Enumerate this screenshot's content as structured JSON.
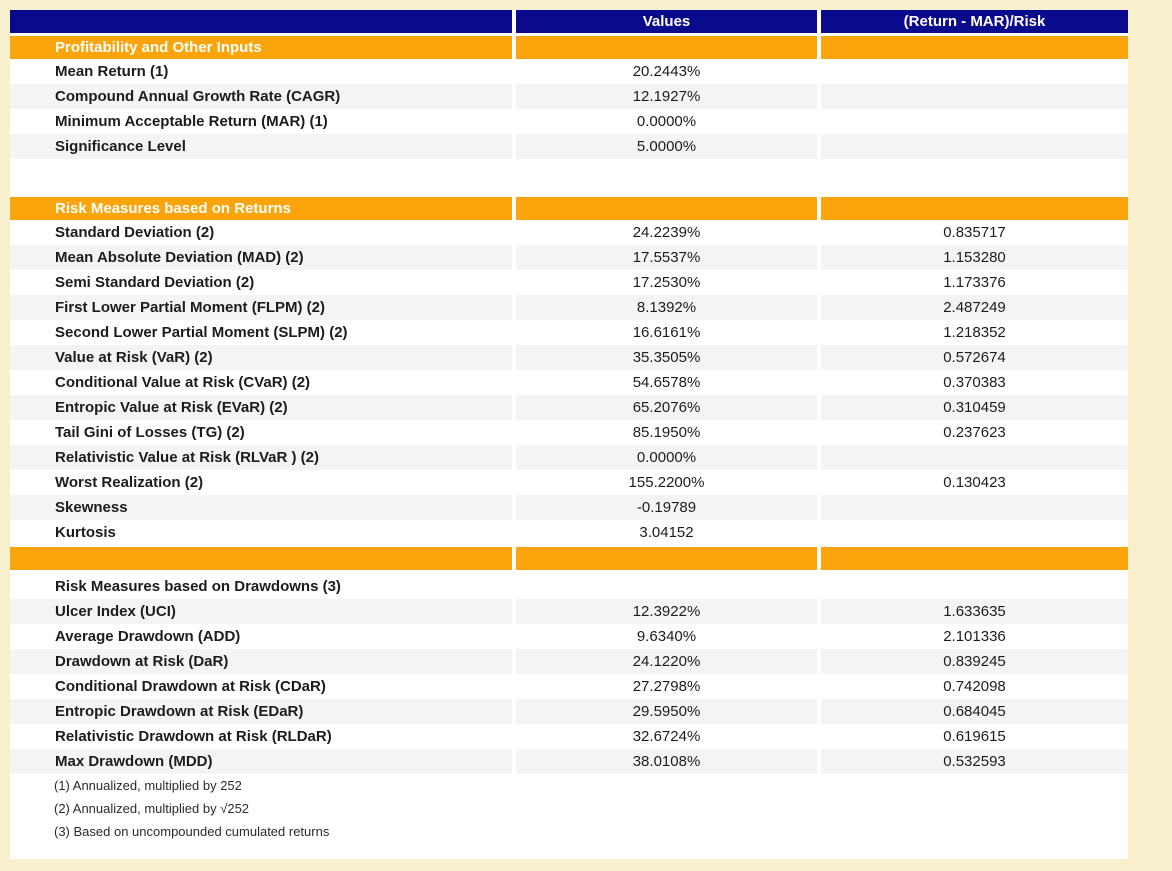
{
  "page": {
    "background_color": "#F8EFCD"
  },
  "table": {
    "colors": {
      "header_bg": "#0A0A8C",
      "section_bg": "#FCA40B",
      "stripe_bg": "#F4F4F4",
      "text": "#1C1C1C"
    },
    "header": {
      "metric_label": "",
      "values_label": "Values",
      "ratio_label": "(Return - MAR)/Risk"
    },
    "rows": [
      {
        "type": "section",
        "label": "Profitability and Other Inputs",
        "value": "",
        "ratio": ""
      },
      {
        "type": "data",
        "stripe": false,
        "label": "Mean Return (1)",
        "value": "20.2443%",
        "ratio": ""
      },
      {
        "type": "data",
        "stripe": true,
        "label": "Compound Annual Growth Rate (CAGR)",
        "value": "12.1927%",
        "ratio": ""
      },
      {
        "type": "data",
        "stripe": false,
        "label": "Minimum Acceptable Return (MAR) (1)",
        "value": "0.0000%",
        "ratio": ""
      },
      {
        "type": "data",
        "stripe": true,
        "label": "Significance Level",
        "value": "5.0000%",
        "ratio": ""
      },
      {
        "type": "spacer",
        "height": 38
      },
      {
        "type": "section",
        "label": "Risk Measures based on Returns",
        "value": "",
        "ratio": ""
      },
      {
        "type": "data",
        "stripe": false,
        "label": "Standard Deviation (2)",
        "value": "24.2239%",
        "ratio": "0.835717"
      },
      {
        "type": "data",
        "stripe": true,
        "label": "Mean Absolute Deviation (MAD) (2)",
        "value": "17.5537%",
        "ratio": "1.153280"
      },
      {
        "type": "data",
        "stripe": false,
        "label": "Semi Standard Deviation (2)",
        "value": "17.2530%",
        "ratio": "1.173376"
      },
      {
        "type": "data",
        "stripe": true,
        "label": "First Lower Partial Moment (FLPM) (2)",
        "value": "8.1392%",
        "ratio": "2.487249"
      },
      {
        "type": "data",
        "stripe": false,
        "label": "Second Lower Partial Moment (SLPM) (2)",
        "value": "16.6161%",
        "ratio": "1.218352"
      },
      {
        "type": "data",
        "stripe": true,
        "label": "Value at Risk (VaR) (2)",
        "value": "35.3505%",
        "ratio": "0.572674"
      },
      {
        "type": "data",
        "stripe": false,
        "label": "Conditional Value at Risk (CVaR) (2)",
        "value": "54.6578%",
        "ratio": "0.370383"
      },
      {
        "type": "data",
        "stripe": true,
        "label": "Entropic Value at Risk (EVaR) (2)",
        "value": "65.2076%",
        "ratio": "0.310459"
      },
      {
        "type": "data",
        "stripe": false,
        "label": "Tail Gini of Losses (TG) (2)",
        "value": "85.1950%",
        "ratio": "0.237623"
      },
      {
        "type": "data",
        "stripe": true,
        "label": "Relativistic Value at Risk (RLVaR ) (2)",
        "value": "0.0000%",
        "ratio": ""
      },
      {
        "type": "data",
        "stripe": false,
        "label": "Worst Realization (2)",
        "value": "155.2200%",
        "ratio": "0.130423"
      },
      {
        "type": "data",
        "stripe": true,
        "label": "Skewness",
        "value": "-0.19789",
        "ratio": ""
      },
      {
        "type": "data",
        "stripe": false,
        "label": "Kurtosis",
        "value": "3.04152",
        "ratio": ""
      },
      {
        "type": "spacer",
        "height": 2
      },
      {
        "type": "section",
        "label": "",
        "value": "",
        "ratio": ""
      },
      {
        "type": "spacer",
        "height": 4
      },
      {
        "type": "subheader",
        "label": "Risk Measures based on Drawdowns (3)",
        "value": "",
        "ratio": ""
      },
      {
        "type": "data",
        "stripe": true,
        "label": "Ulcer Index (UCI)",
        "value": "12.3922%",
        "ratio": "1.633635"
      },
      {
        "type": "data",
        "stripe": false,
        "label": "Average Drawdown (ADD)",
        "value": "9.6340%",
        "ratio": "2.101336"
      },
      {
        "type": "data",
        "stripe": true,
        "label": "Drawdown at Risk (DaR)",
        "value": "24.1220%",
        "ratio": "0.839245"
      },
      {
        "type": "data",
        "stripe": false,
        "label": "Conditional Drawdown at Risk (CDaR)",
        "value": "27.2798%",
        "ratio": "0.742098"
      },
      {
        "type": "data",
        "stripe": true,
        "label": "Entropic Drawdown at Risk (EDaR)",
        "value": "29.5950%",
        "ratio": "0.684045"
      },
      {
        "type": "data",
        "stripe": false,
        "label": "Relativistic Drawdown at Risk (RLDaR)",
        "value": "32.6724%",
        "ratio": "0.619615"
      },
      {
        "type": "data",
        "stripe": true,
        "label": "Max Drawdown (MDD)",
        "value": "38.0108%",
        "ratio": "0.532593"
      },
      {
        "type": "footnote",
        "text": "(1) Annualized, multiplied by 252"
      },
      {
        "type": "footnote",
        "text": "(2) Annualized, multiplied by √252"
      },
      {
        "type": "footnote",
        "text": "(3) Based on uncompounded cumulated returns"
      }
    ]
  }
}
